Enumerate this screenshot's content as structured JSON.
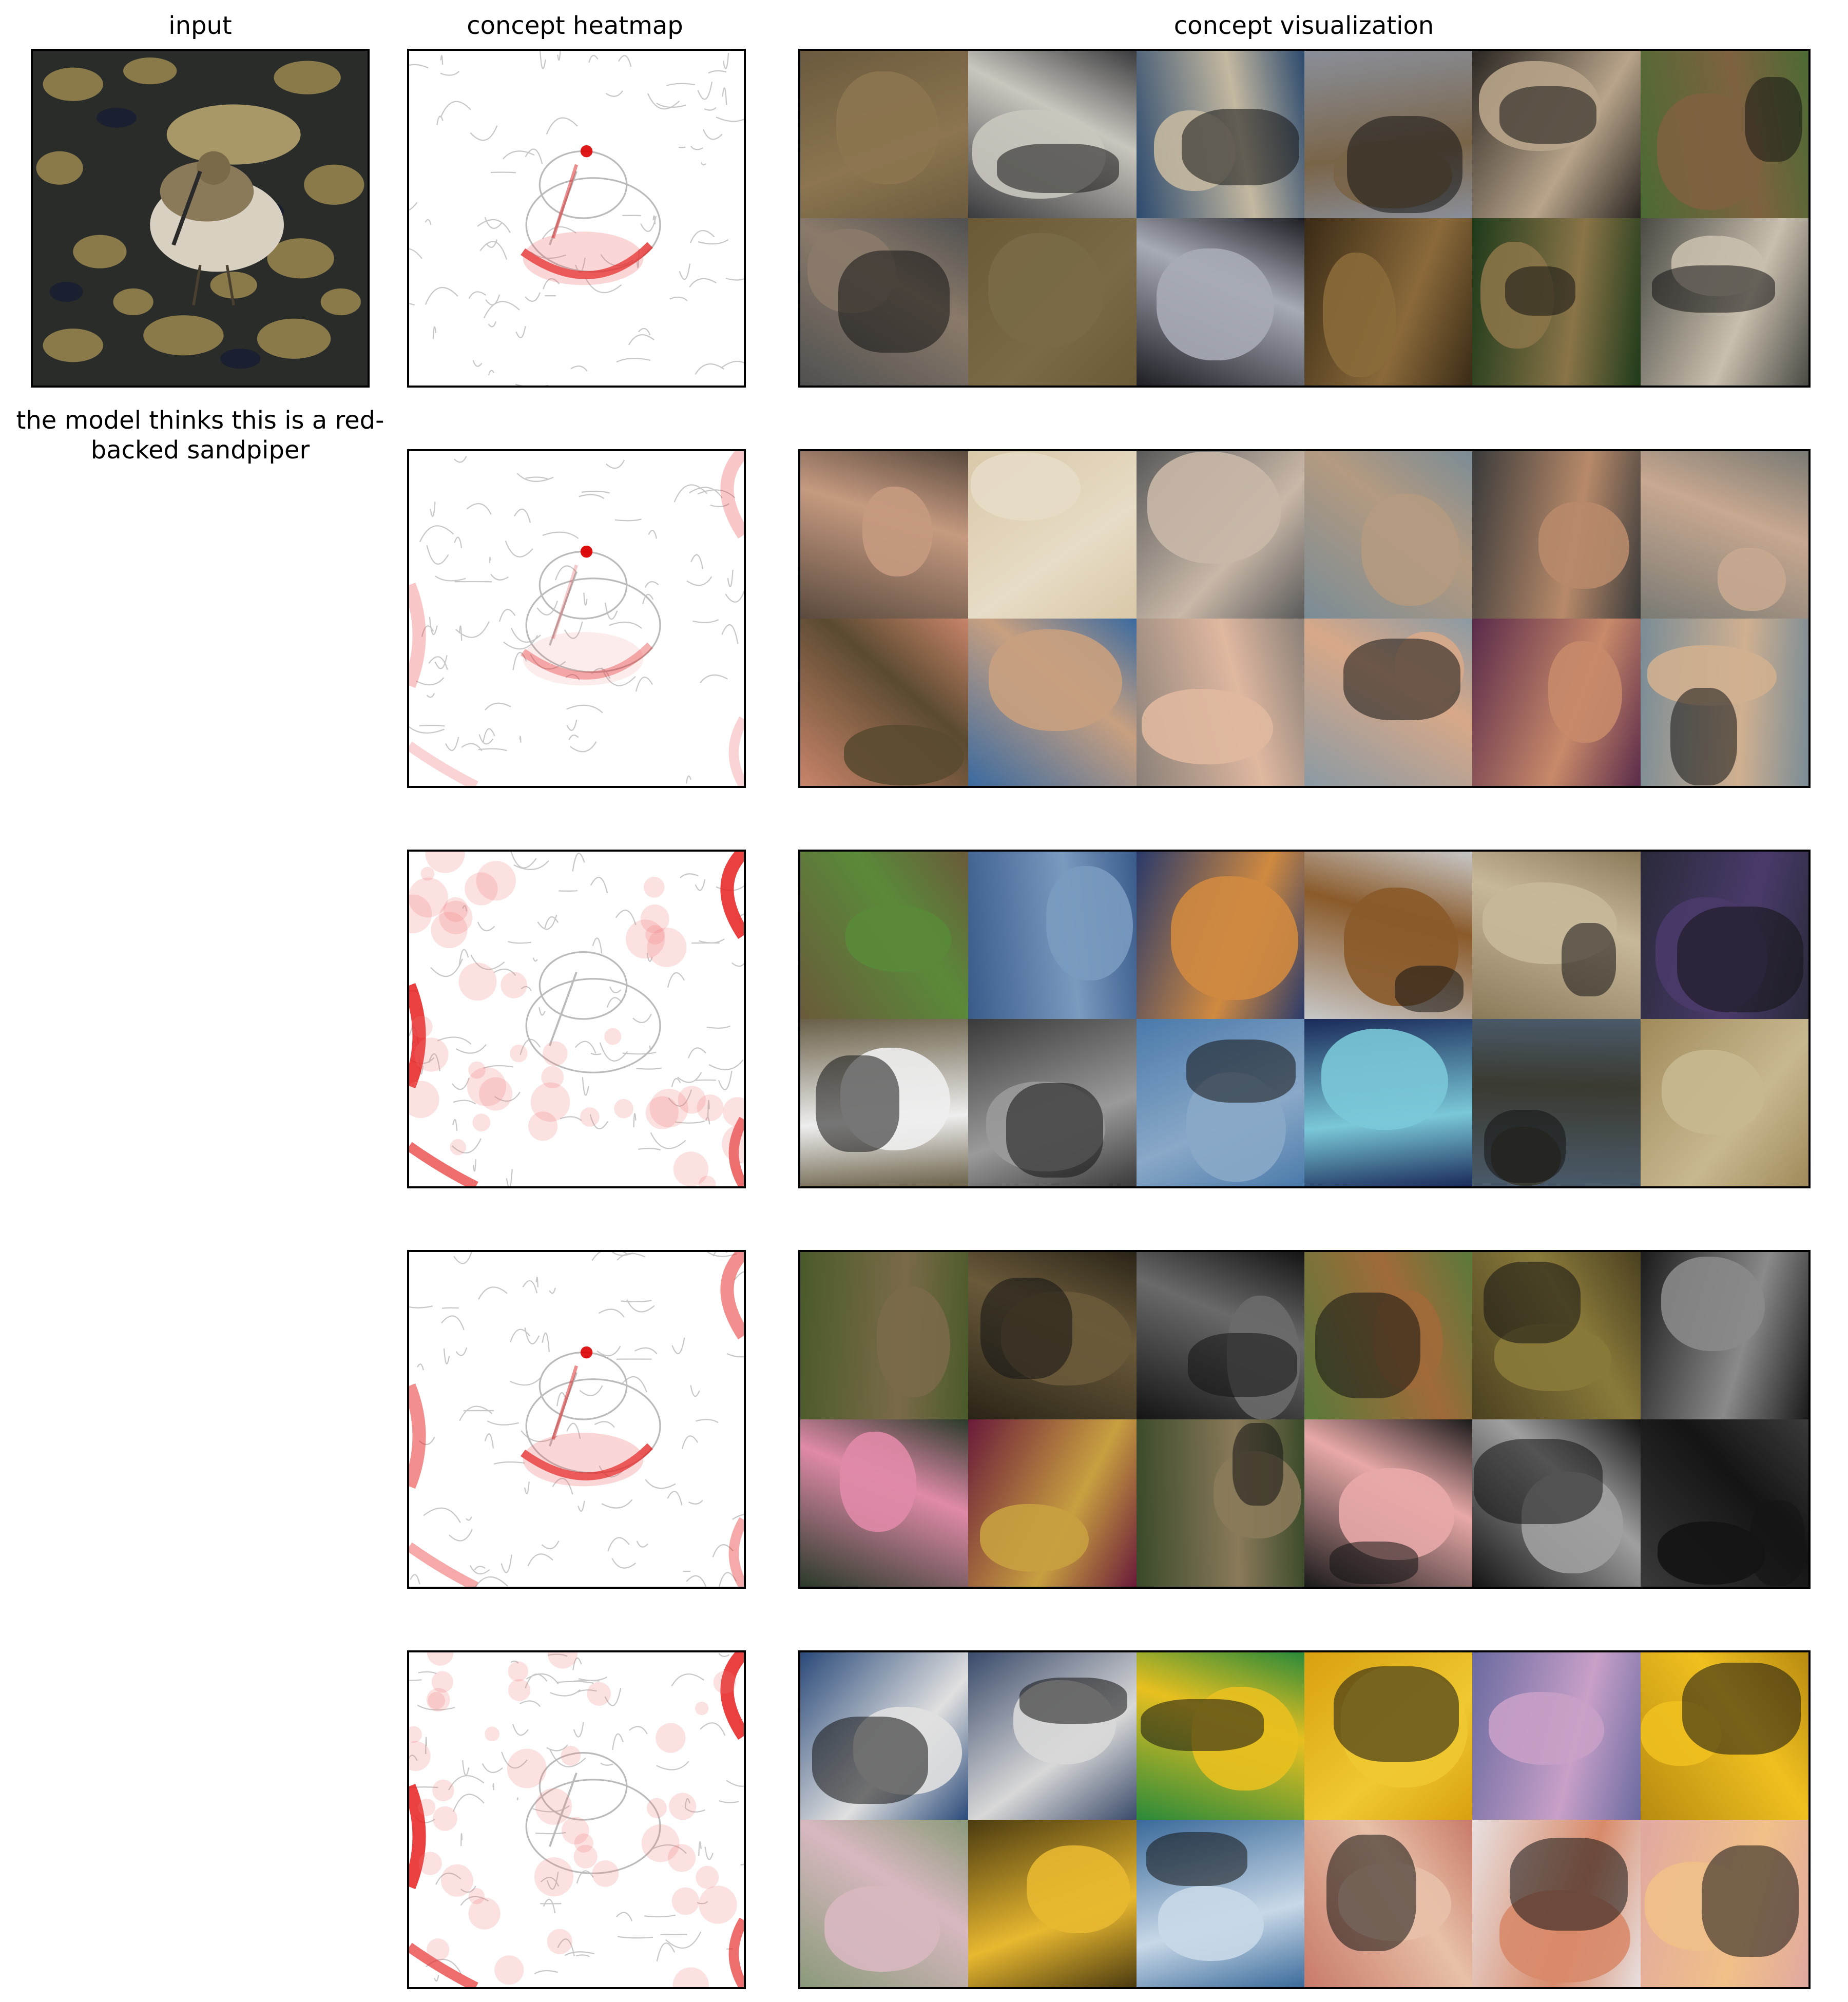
{
  "titles": {
    "input": "input",
    "heatmap": "concept heatmap",
    "visualization": "concept visualization"
  },
  "caption": "the model thinks this is a red-backed sandpiper",
  "concepts": [
    {
      "heat": "beak",
      "tiles": [
        {
          "bg": "#6b5a3e",
          "fg": "#8c7550",
          "name": "grouse-tile"
        },
        {
          "bg": "#3a3b3e",
          "fg": "#c9c6be",
          "name": "ptarmigan-tile"
        },
        {
          "bg": "#2c4a6e",
          "fg": "#c4b8a0",
          "name": "sandpiper-water-tile"
        },
        {
          "bg": "#8a8f9a",
          "fg": "#7a6448",
          "name": "grouse-standing-tile"
        },
        {
          "bg": "#2a2622",
          "fg": "#b8a48a",
          "name": "sandpiper-sand-tile"
        },
        {
          "bg": "#4c6a34",
          "fg": "#7e6240",
          "name": "grouse-grass-tile"
        },
        {
          "bg": "#505050",
          "fg": "#8a7a6a",
          "name": "gull-tile"
        },
        {
          "bg": "#6a5a36",
          "fg": "#7a6a48",
          "name": "snipe-tile"
        },
        {
          "bg": "#1e1e24",
          "fg": "#a7abb5",
          "name": "sanderling-tile"
        },
        {
          "bg": "#3a2a16",
          "fg": "#8a6a3a",
          "name": "quail-tile"
        },
        {
          "bg": "#1e3a1a",
          "fg": "#8a7448",
          "name": "quail-leaves-tile"
        },
        {
          "bg": "#4a4a44",
          "fg": "#c9bfae",
          "name": "dunlin-tile"
        }
      ]
    },
    {
      "heat": "beak-light",
      "tiles": [
        {
          "bg": "#5a4a3e",
          "fg": "#c69a80",
          "name": "crowd-tile"
        },
        {
          "bg": "#d9c8a8",
          "fg": "#e7dcc6",
          "name": "paper-tile"
        },
        {
          "bg": "#5a5a5a",
          "fg": "#c9b8a8",
          "name": "person-surf-tile"
        },
        {
          "bg": "#7a8c96",
          "fg": "#b49a80",
          "name": "swimmers-tile"
        },
        {
          "bg": "#3a3a3a",
          "fg": "#b88a6a",
          "name": "group-tile"
        },
        {
          "bg": "#7a7a74",
          "fg": "#c8a890",
          "name": "beach-tile"
        },
        {
          "bg": "#c8846a",
          "fg": "#5a4a30",
          "name": "frog-hand-tile"
        },
        {
          "bg": "#3a6aa0",
          "fg": "#c8a080",
          "name": "man-beach-tile"
        },
        {
          "bg": "#8a8078",
          "fg": "#e0b8a0",
          "name": "baby-tile"
        },
        {
          "bg": "#8a9aa4",
          "fg": "#d8a888",
          "name": "man-sea-tile"
        },
        {
          "bg": "#5a2a4a",
          "fg": "#c88a6a",
          "name": "party-tile"
        },
        {
          "bg": "#7a8c96",
          "fg": "#d0b090",
          "name": "women-beach-tile"
        }
      ]
    },
    {
      "heat": "edges",
      "tiles": [
        {
          "bg": "#6a5a3a",
          "fg": "#5a8a3a",
          "name": "shoe-store-tile"
        },
        {
          "bg": "#3a5a8a",
          "fg": "#7a9ac0",
          "name": "water-turtle-tile"
        },
        {
          "bg": "#2a3a6a",
          "fg": "#d08a40",
          "name": "sleeping-bag-tile"
        },
        {
          "bg": "#c8c8c8",
          "fg": "#8a5a2a",
          "name": "snow-tile"
        },
        {
          "bg": "#8a7a5a",
          "fg": "#c8b89a",
          "name": "soldiers-tile"
        },
        {
          "bg": "#2a2a3a",
          "fg": "#4a3a6a",
          "name": "bench-tile"
        },
        {
          "bg": "#6a6048",
          "fg": "#eeeeee",
          "name": "eider-tile"
        },
        {
          "bg": "#3a3a3a",
          "fg": "#9a9a9a",
          "name": "flowers-bw-tile"
        },
        {
          "bg": "#4a7aaa",
          "fg": "#8aa8c8",
          "name": "puzzle-sky-tile"
        },
        {
          "bg": "#1a2a5a",
          "fg": "#7ac8d8",
          "name": "anemone-tile"
        },
        {
          "bg": "#4a5a6a",
          "fg": "#3a3a30",
          "name": "duck-water-tile"
        },
        {
          "bg": "#a08a5a",
          "fg": "#c8b890",
          "name": "muddy-water-tile"
        }
      ]
    },
    {
      "heat": "beak-edges",
      "tiles": [
        {
          "bg": "#4a5a2a",
          "fg": "#7a6a4a",
          "name": "deer-tile"
        },
        {
          "bg": "#2a2418",
          "fg": "#6a5a3a",
          "name": "pianist-tile"
        },
        {
          "bg": "#141414",
          "fg": "#6a6a6a",
          "name": "piano-dark-tile"
        },
        {
          "bg": "#5a7a3a",
          "fg": "#a06a3a",
          "name": "foxes-tile"
        },
        {
          "bg": "#4a4020",
          "fg": "#8a7a3a",
          "name": "rock-tile"
        },
        {
          "bg": "#1a1a1a",
          "fg": "#8a8a8a",
          "name": "piano-room-tile"
        },
        {
          "bg": "#2a3a2a",
          "fg": "#e08aa8",
          "name": "spoonbill-tile"
        },
        {
          "bg": "#6a1a3a",
          "fg": "#c8a040",
          "name": "lizard-tile"
        },
        {
          "bg": "#3a4a2a",
          "fg": "#8a7a5a",
          "name": "crane-tile"
        },
        {
          "bg": "#1a1a1a",
          "fg": "#e8a8a8",
          "name": "fingers-tile"
        },
        {
          "bg": "#141414",
          "fg": "#a0a0a0",
          "name": "deer-night-tile"
        },
        {
          "bg": "#3a3a3a",
          "fg": "#141414",
          "name": "piano-upright-tile"
        }
      ]
    },
    {
      "heat": "texture",
      "tiles": [
        {
          "bg": "#2a4a7a",
          "fg": "#e0e0e0",
          "name": "knit-blue-tile"
        },
        {
          "bg": "#3a4a6a",
          "fg": "#d8d8d8",
          "name": "clouds-tile"
        },
        {
          "bg": "#2a8a3a",
          "fg": "#e8c020",
          "name": "brick-knit-tile"
        },
        {
          "bg": "#d8a010",
          "fg": "#f0c830",
          "name": "corn-tile"
        },
        {
          "bg": "#6a6aa0",
          "fg": "#c8a0c8",
          "name": "weave-tile"
        },
        {
          "bg": "#b88a10",
          "fg": "#f0c020",
          "name": "corn-close-tile"
        },
        {
          "bg": "#8a9a7a",
          "fg": "#d8b8c0",
          "name": "crochet-wave-tile"
        },
        {
          "bg": "#4a3a10",
          "fg": "#e8b830",
          "name": "corn-pile-tile"
        },
        {
          "bg": "#3a6a9a",
          "fg": "#c8d8e8",
          "name": "knit-blanket-tile"
        },
        {
          "bg": "#c87a6a",
          "fg": "#e8c0a8",
          "name": "knit-pink-tile"
        },
        {
          "bg": "#e8e0e0",
          "fg": "#d88a6a",
          "name": "knit-dots-tile"
        },
        {
          "bg": "#e0a8a0",
          "fg": "#f0c088",
          "name": "knit-orange-tile"
        }
      ]
    }
  ]
}
